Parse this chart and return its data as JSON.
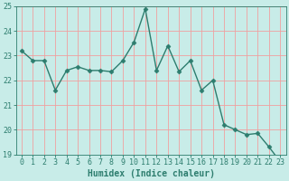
{
  "x": [
    0,
    1,
    2,
    3,
    4,
    5,
    6,
    7,
    8,
    9,
    10,
    11,
    12,
    13,
    14,
    15,
    16,
    17,
    18,
    19,
    20,
    21,
    22,
    23
  ],
  "y": [
    23.2,
    22.8,
    22.8,
    21.6,
    22.4,
    22.55,
    22.4,
    22.4,
    22.35,
    22.8,
    23.55,
    24.9,
    22.4,
    23.4,
    22.35,
    22.8,
    21.6,
    22.0,
    20.2,
    20.0,
    19.8,
    19.85,
    19.3,
    18.7
  ],
  "line_color": "#2d7d6e",
  "marker": "D",
  "marker_size": 2.5,
  "bg_color": "#c8ece8",
  "grid_color": "#f0a0a0",
  "xlabel": "Humidex (Indice chaleur)",
  "ylim": [
    19,
    25
  ],
  "xlim_min": -0.5,
  "xlim_max": 23.5,
  "yticks": [
    19,
    20,
    21,
    22,
    23,
    24,
    25
  ],
  "xticks": [
    0,
    1,
    2,
    3,
    4,
    5,
    6,
    7,
    8,
    9,
    10,
    11,
    12,
    13,
    14,
    15,
    16,
    17,
    18,
    19,
    20,
    21,
    22,
    23
  ],
  "tick_color": "#2d7d6e",
  "label_color": "#2d7d6e",
  "spine_color": "#2d7d6e",
  "xlabel_fontsize": 7,
  "tick_fontsize": 6,
  "line_width": 1.0,
  "fig_width": 3.2,
  "fig_height": 2.0,
  "dpi": 100
}
